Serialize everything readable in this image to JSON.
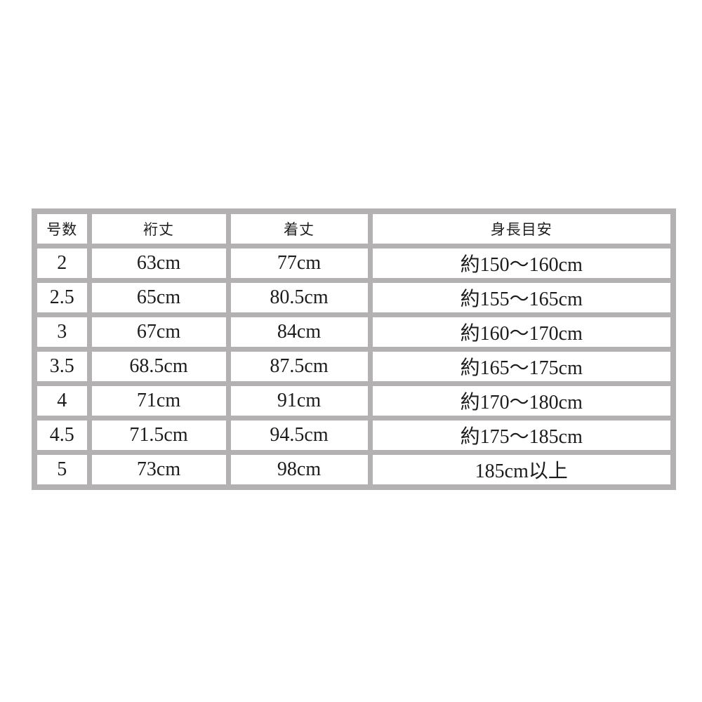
{
  "colors": {
    "background": "#ffffff",
    "table_border": "#b3b1b1",
    "cell_background": "#ffffff",
    "text": "#1c1c1c"
  },
  "chart_data": {
    "type": "table",
    "title": "",
    "columns": [
      "号数",
      "裄丈",
      "着丈",
      "身長目安"
    ],
    "rows": [
      [
        "2",
        "63cm",
        "77cm",
        "約150〜160cm"
      ],
      [
        "2.5",
        "65cm",
        "80.5cm",
        "約155〜165cm"
      ],
      [
        "3",
        "67cm",
        "84cm",
        "約160〜170cm"
      ],
      [
        "3.5",
        "68.5cm",
        "87.5cm",
        "約165〜175cm"
      ],
      [
        "4",
        "71cm",
        "91cm",
        "約170〜180cm"
      ],
      [
        "4.5",
        "71.5cm",
        "94.5cm",
        "約175〜185cm"
      ],
      [
        "5",
        "73cm",
        "98cm",
        "185cm以上"
      ]
    ]
  }
}
